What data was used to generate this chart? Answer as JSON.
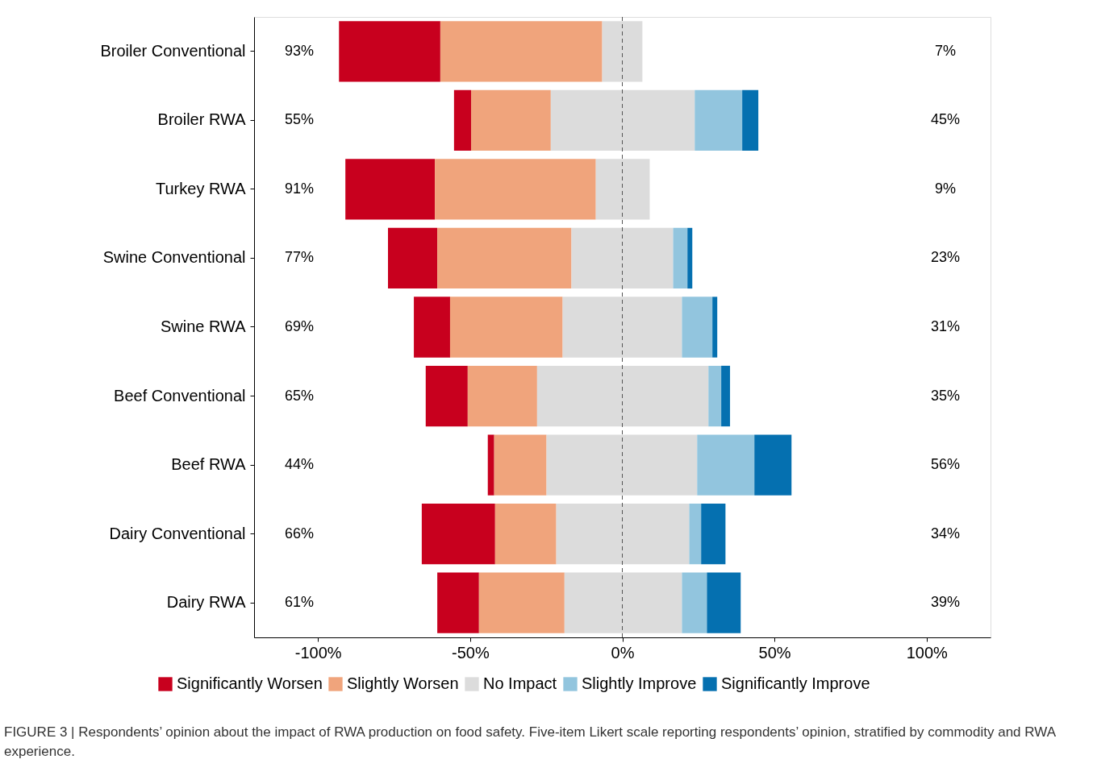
{
  "chart_data": {
    "type": "bar",
    "orientation": "horizontal",
    "categories": [
      "Broiler Conventional",
      "Broiler RWA",
      "Turkey RWA",
      "Swine Conventional",
      "Swine RWA",
      "Beef Conventional",
      "Beef RWA",
      "Dairy Conventional",
      "Dairy RWA"
    ],
    "series": [
      {
        "name": "Significantly Worsen",
        "color": "#c8001e",
        "base": [
          -93.1,
          -55.3,
          -91.0,
          -77.0,
          -68.5,
          -64.6,
          -44.2,
          -65.9,
          -60.8
        ],
        "values": [
          33.3,
          5.6,
          29.4,
          16.2,
          11.9,
          13.8,
          2.1,
          24.1,
          13.7
        ]
      },
      {
        "name": "Slightly Worsen",
        "color": "#f0a47c",
        "base": [
          -59.8,
          -49.7,
          -61.6,
          -60.8,
          -56.6,
          -50.8,
          -42.1,
          -41.8,
          -47.1
        ],
        "values": [
          53.2,
          26.2,
          52.9,
          44.1,
          37.0,
          22.8,
          17.2,
          20.1,
          28.1
        ]
      },
      {
        "name": "No Impact",
        "color": "#dcdcdc",
        "base": [
          -6.6,
          -23.5,
          -8.7,
          -16.7,
          -19.6,
          -28.0,
          -24.9,
          -21.7,
          -19.0
        ],
        "values": [
          13.2,
          47.3,
          17.7,
          33.4,
          39.2,
          56.3,
          49.5,
          43.7,
          38.6
        ]
      },
      {
        "name": "Slightly Improve",
        "color": "#92c5de",
        "base": [
          null,
          23.8,
          null,
          16.7,
          19.6,
          28.3,
          24.6,
          22.0,
          19.6
        ],
        "values": [
          null,
          15.6,
          null,
          4.7,
          10.0,
          4.2,
          18.8,
          3.9,
          8.2
        ]
      },
      {
        "name": "Significantly Improve",
        "color": "#0570b0",
        "base": [
          null,
          39.4,
          null,
          21.4,
          29.6,
          32.5,
          43.4,
          25.9,
          27.8
        ],
        "values": [
          null,
          5.3,
          null,
          1.6,
          1.6,
          2.9,
          12.2,
          8.0,
          11.1
        ]
      }
    ],
    "xlim": [
      -121,
      121
    ],
    "xticks": [
      {
        "value": -100,
        "label": "-100%"
      },
      {
        "value": -50,
        "label": "-50%"
      },
      {
        "value": 0,
        "label": "0%"
      },
      {
        "value": 50,
        "label": "50%"
      },
      {
        "value": 100,
        "label": "100%"
      }
    ],
    "ref_lines": [
      {
        "axis": "x",
        "value": 0,
        "color": "#555555",
        "line_style": "dashed"
      }
    ],
    "grid": false,
    "legend": "bottom",
    "annotations": [
      "93%",
      "7%",
      "55%",
      "45%",
      "91%",
      "9%",
      "77%",
      "23%",
      "69%",
      "31%",
      "65%",
      "35%",
      "44%",
      "56%",
      "66%",
      "34%",
      "61%",
      "39%",
      "FIGURE 3 | Respondents’ opinion about the impact of RWA production on food safety. Five-item Likert scale reporting respondents’ opinion, stratified by commodity and RWA experience."
    ]
  }
}
